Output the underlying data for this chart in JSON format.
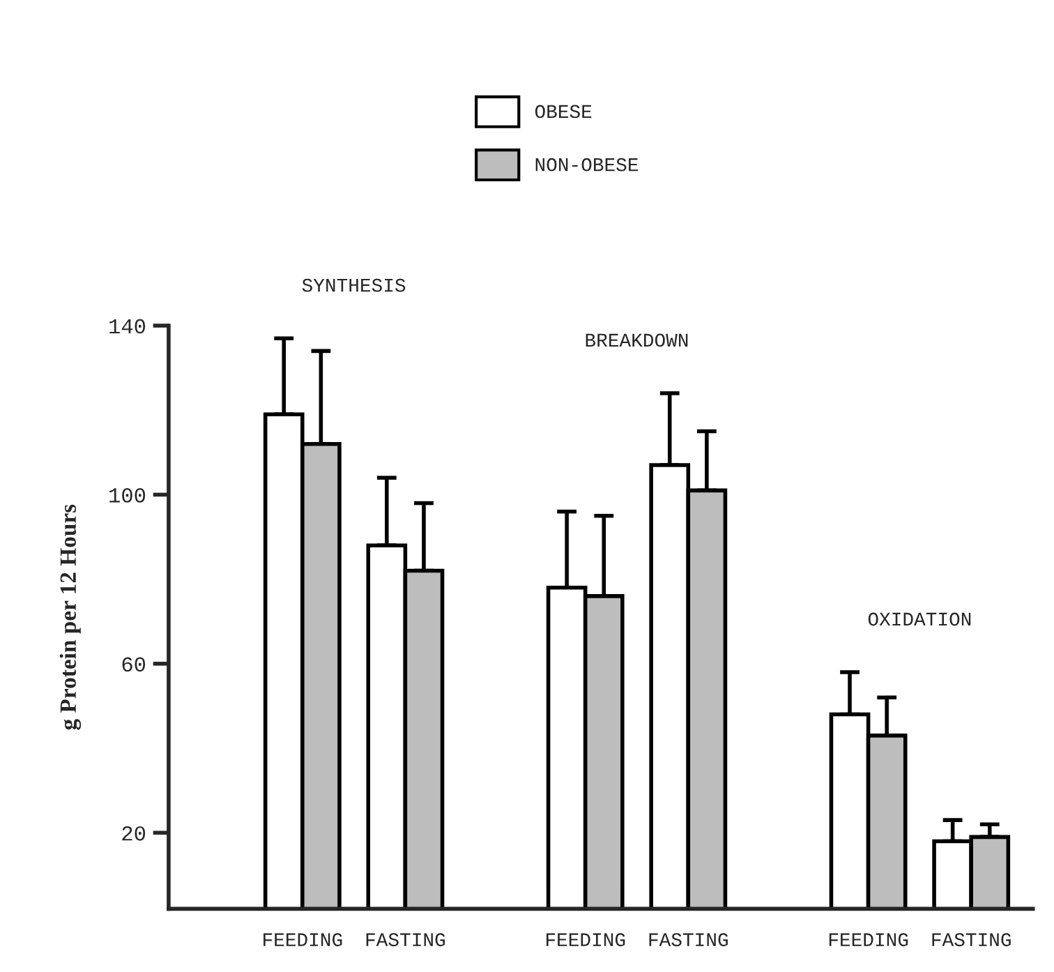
{
  "chart_data": {
    "type": "bar",
    "ylabel": "g Protein per 12 Hours",
    "categories": [
      "FEEDING",
      "FASTING",
      "FEEDING",
      "FASTING",
      "FEEDING",
      "FASTING"
    ],
    "series": [
      {
        "name": "OBESE",
        "color": "#ffffff",
        "values": [
          119,
          88,
          78,
          107,
          48,
          18
        ],
        "errors": [
          [
            119,
            137
          ],
          [
            88,
            104
          ],
          [
            78,
            96
          ],
          [
            107,
            124
          ],
          [
            48,
            58
          ],
          [
            18,
            23
          ]
        ]
      },
      {
        "name": "NON-OBESE",
        "color": "#bdbdbd",
        "values": [
          112,
          82,
          76,
          101,
          43,
          19
        ],
        "errors": [
          [
            112,
            134
          ],
          [
            82,
            98
          ],
          [
            76,
            95
          ],
          [
            101,
            115
          ],
          [
            43,
            52
          ],
          [
            19,
            22
          ]
        ]
      }
    ],
    "annotations": [
      "SYNTHESIS",
      "BREAKDOWN",
      "OXIDATION"
    ],
    "ylim": [
      2,
      140
    ],
    "yticks": [
      20,
      60,
      100,
      140
    ],
    "grid": false,
    "legend": "top"
  }
}
